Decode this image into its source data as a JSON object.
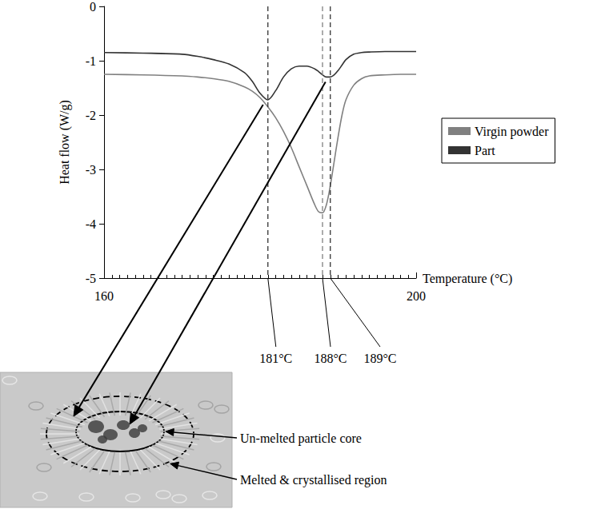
{
  "chart_data": {
    "type": "line",
    "x_label": "Temperature (°C)",
    "y_label": "Heat flow (W/g)",
    "x": [
      160,
      165,
      170,
      172,
      174,
      176,
      178,
      179,
      180,
      181,
      182,
      183,
      184,
      185,
      186,
      187,
      187.5,
      188,
      188.5,
      189,
      189.5,
      190,
      190.5,
      191,
      192,
      193,
      194,
      196,
      198,
      200
    ],
    "series": [
      {
        "name": "Virgin powder",
        "color": "#808080",
        "values": [
          -1.25,
          -1.26,
          -1.28,
          -1.3,
          -1.33,
          -1.38,
          -1.48,
          -1.56,
          -1.68,
          -1.85,
          -2.05,
          -2.3,
          -2.6,
          -2.95,
          -3.3,
          -3.65,
          -3.78,
          -3.8,
          -3.65,
          -3.3,
          -2.85,
          -2.4,
          -2.0,
          -1.72,
          -1.45,
          -1.33,
          -1.28,
          -1.26,
          -1.25,
          -1.25
        ]
      },
      {
        "name": "Part",
        "color": "#333333",
        "values": [
          -0.85,
          -0.86,
          -0.88,
          -0.92,
          -0.98,
          -1.06,
          -1.22,
          -1.38,
          -1.6,
          -1.72,
          -1.55,
          -1.3,
          -1.15,
          -1.1,
          -1.1,
          -1.15,
          -1.2,
          -1.26,
          -1.3,
          -1.3,
          -1.26,
          -1.18,
          -1.08,
          -0.98,
          -0.88,
          -0.85,
          -0.84,
          -0.83,
          -0.83,
          -0.83
        ]
      }
    ],
    "xlim": [
      160,
      200
    ],
    "xticks": [
      160,
      200
    ],
    "ylim": [
      -5,
      0
    ],
    "yticks": [
      -5,
      -4,
      -3,
      -2,
      -1,
      0
    ],
    "grid": false,
    "legend": "right",
    "vlines": [
      {
        "value": 181,
        "label": "181°C",
        "color": "#333333"
      },
      {
        "value": 188,
        "label": "188°C",
        "color": "#808080"
      },
      {
        "value": 189,
        "label": "189°C",
        "color": "#333333"
      }
    ],
    "image_labels": [
      {
        "text": "Un-melted particle core",
        "peak": 189
      },
      {
        "text": "Melted & crystallised region",
        "peak": 181
      }
    ]
  }
}
